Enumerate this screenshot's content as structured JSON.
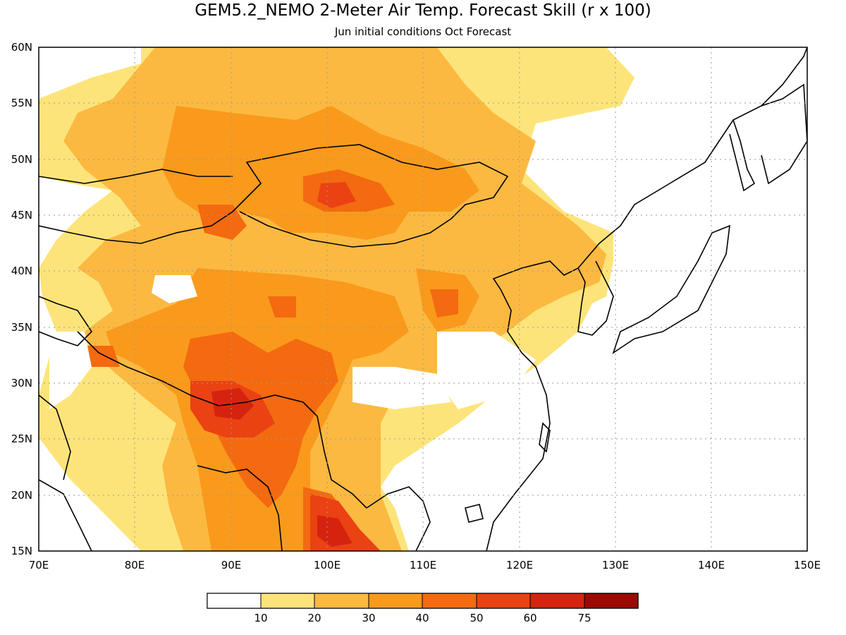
{
  "title": "GEM5.2_NEMO 2-Meter Air Temp. Forecast Skill (r x 100)",
  "subtitle": "Jun initial conditions  Oct Forecast",
  "map": {
    "lon_range": [
      70,
      150
    ],
    "lat_range": [
      15,
      60
    ],
    "x_ticks": [
      "70E",
      "80E",
      "90E",
      "100E",
      "110E",
      "120E",
      "130E",
      "140E",
      "150E"
    ],
    "y_ticks": [
      "15N",
      "20N",
      "25N",
      "30N",
      "35N",
      "40N",
      "45N",
      "50N",
      "55N",
      "60N"
    ],
    "gridlines": "dotted"
  },
  "legend": {
    "colors": [
      "#ffffff",
      "#fde47a",
      "#fcb941",
      "#f99a1c",
      "#f36a10",
      "#ea4213",
      "#d6230f",
      "#9b0a03"
    ],
    "labels": [
      "10",
      "20",
      "30",
      "40",
      "50",
      "60",
      "75"
    ]
  }
}
